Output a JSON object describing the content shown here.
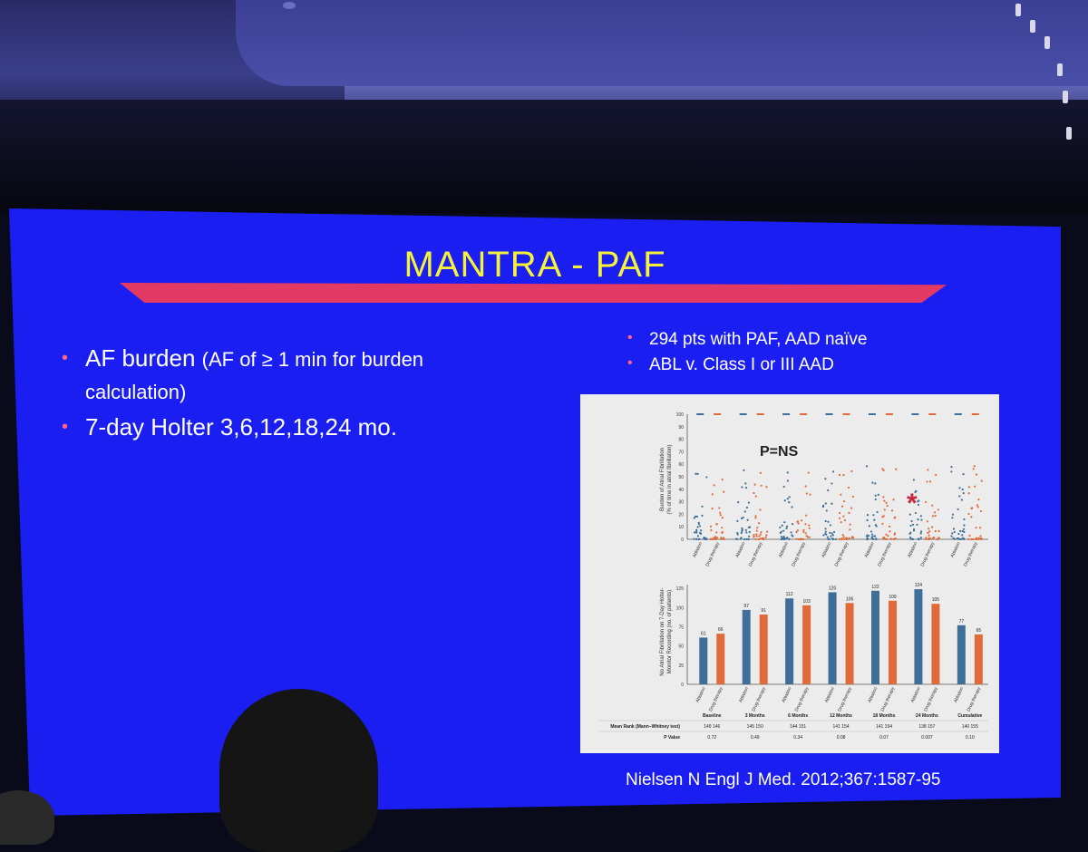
{
  "slide": {
    "title": "MANTRA - PAF",
    "left_bullets": [
      {
        "main": "AF burden",
        "detail": "(AF of ≥ 1 min for burden",
        "detail2": "calculation)"
      },
      {
        "main": "7-day Holter 3,6,12,18,24 mo."
      }
    ],
    "right_bullets": [
      "294 pts with PAF, AAD naïve",
      "ABL v. Class I or III AAD"
    ],
    "citation": "Nielsen N Engl J Med. 2012;367:1587-95",
    "colors": {
      "background": "#1a1ef0",
      "title": "#f4f23a",
      "accent": "#e23a62",
      "ablation": "#3d6f98",
      "drug": "#e06a3a"
    }
  },
  "figure": {
    "annotation": "P=NS",
    "asterisk": "*",
    "scatter": {
      "ylabel1": "Burden of Atrial Fibrillation",
      "ylabel2": "(% of time in atrial fibrillation)",
      "yticks": [
        "0",
        "10",
        "20",
        "30",
        "40",
        "50",
        "60",
        "70",
        "80",
        "90",
        "100"
      ],
      "group_labels": [
        "Ablation",
        "Drug therapy"
      ]
    },
    "bar": {
      "ylabel1": "No Atrial Fibrillation on 7-Day Holter-",
      "ylabel2": "Monitor Recording (no. of patients)",
      "yticks": [
        "0",
        "25",
        "50",
        "75",
        "100",
        "125"
      ],
      "group_labels": [
        "Ablation",
        "Drug therapy"
      ]
    },
    "timepoints": [
      "Baseline",
      "3 Months",
      "6 Months",
      "12 Months",
      "18 Months",
      "24 Months",
      "Cumulative"
    ],
    "row_labels": {
      "mean_rank": "Mean Rank (Mann–Whitney test)",
      "p_value": "P Value"
    },
    "mean_rank": [
      [
        "149",
        "146"
      ],
      [
        "145",
        "150"
      ],
      [
        "144",
        "151"
      ],
      [
        "141",
        "154"
      ],
      [
        "141",
        "154"
      ],
      [
        "138",
        "157"
      ],
      [
        "140",
        "155"
      ]
    ],
    "p_values": [
      "0.72",
      "0.49",
      "0.34",
      "0.08",
      "0.07",
      "0.007",
      "0.10"
    ]
  },
  "chart_data": {
    "type": "bar",
    "categories": [
      "Baseline",
      "3 Months",
      "6 Months",
      "12 Months",
      "18 Months",
      "24 Months",
      "Cumulative"
    ],
    "series": [
      {
        "name": "Ablation",
        "values": [
          61,
          97,
          112,
          120,
          122,
          124,
          77
        ]
      },
      {
        "name": "Drug therapy",
        "values": [
          66,
          91,
          103,
          106,
          109,
          105,
          65
        ]
      }
    ],
    "ylabel": "No Atrial Fibrillation on 7-Day Holter-Monitor Recording (no. of patients)",
    "ylim": [
      0,
      130
    ]
  }
}
